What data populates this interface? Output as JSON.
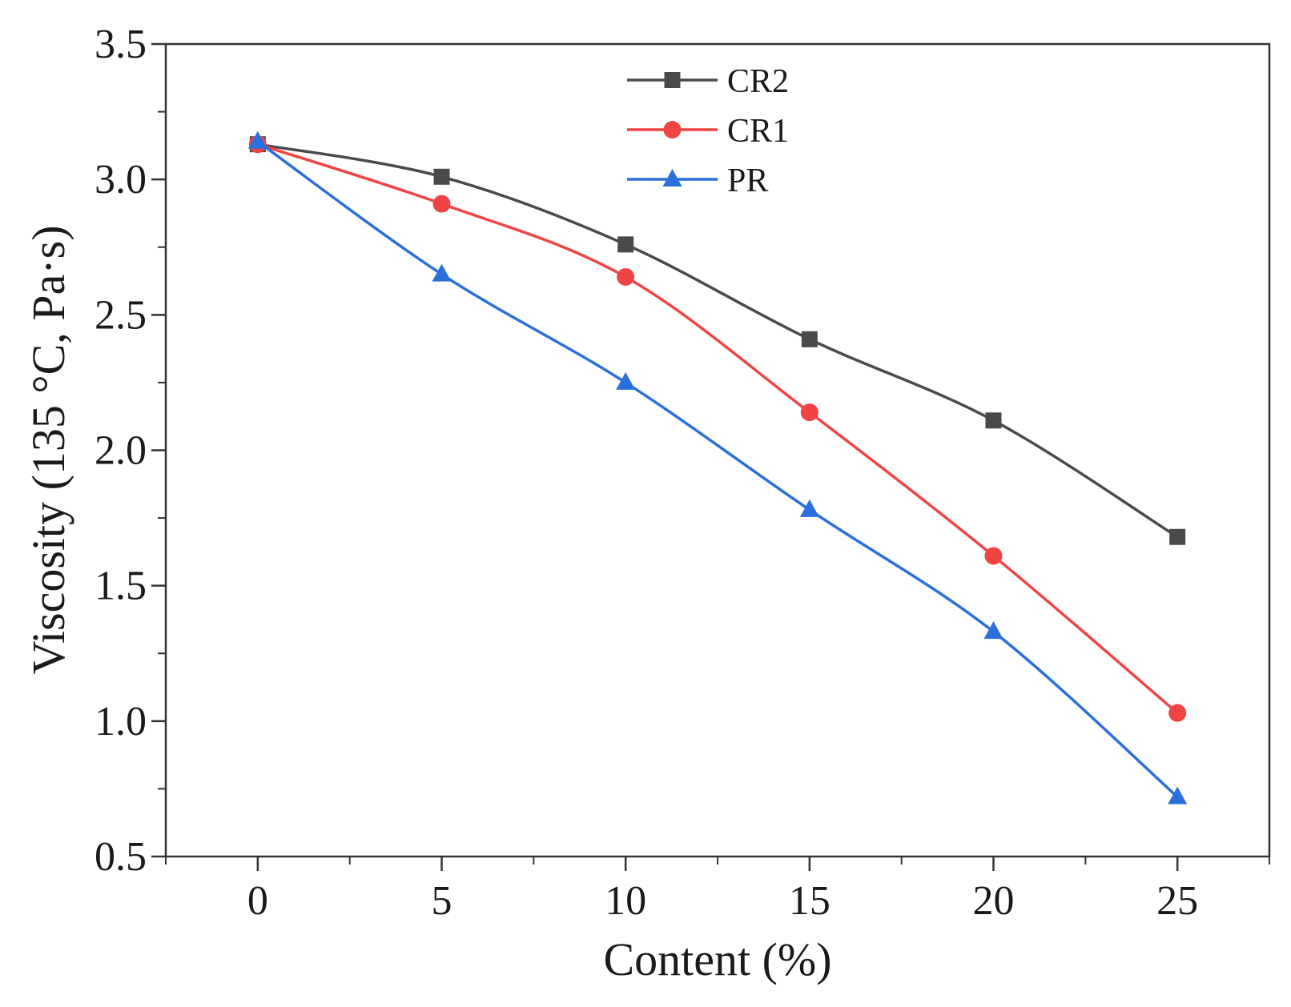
{
  "chart_data": {
    "type": "line",
    "title": "",
    "xlabel": "Content (%)",
    "ylabel": "Viscosity (135 °C, Pa·s)",
    "x": [
      0,
      5,
      10,
      15,
      20,
      25
    ],
    "xlim": [
      -2.5,
      27.5
    ],
    "ylim": [
      0.5,
      3.5
    ],
    "x_ticks": [
      0,
      5,
      10,
      15,
      20,
      25
    ],
    "x_tick_labels": [
      "0",
      "5",
      "10",
      "15",
      "20",
      "25"
    ],
    "y_ticks": [
      0.5,
      1.0,
      1.5,
      2.0,
      2.5,
      3.0,
      3.5
    ],
    "y_tick_labels": [
      "0.5",
      "1.0",
      "1.5",
      "2.0",
      "2.5",
      "3.0",
      "3.5"
    ],
    "grid": false,
    "legend_position": "top-center",
    "series": [
      {
        "name": "CR2",
        "marker": "square",
        "color": "#4a4a4a",
        "values": [
          3.13,
          3.01,
          2.76,
          2.41,
          2.11,
          1.68
        ]
      },
      {
        "name": "CR1",
        "marker": "circle",
        "color": "#f04444",
        "values": [
          3.13,
          2.91,
          2.64,
          2.14,
          1.61,
          1.03
        ]
      },
      {
        "name": "PR",
        "marker": "triangle",
        "color": "#2a6fdb",
        "values": [
          3.14,
          2.65,
          2.25,
          1.78,
          1.33,
          0.72
        ]
      }
    ]
  }
}
